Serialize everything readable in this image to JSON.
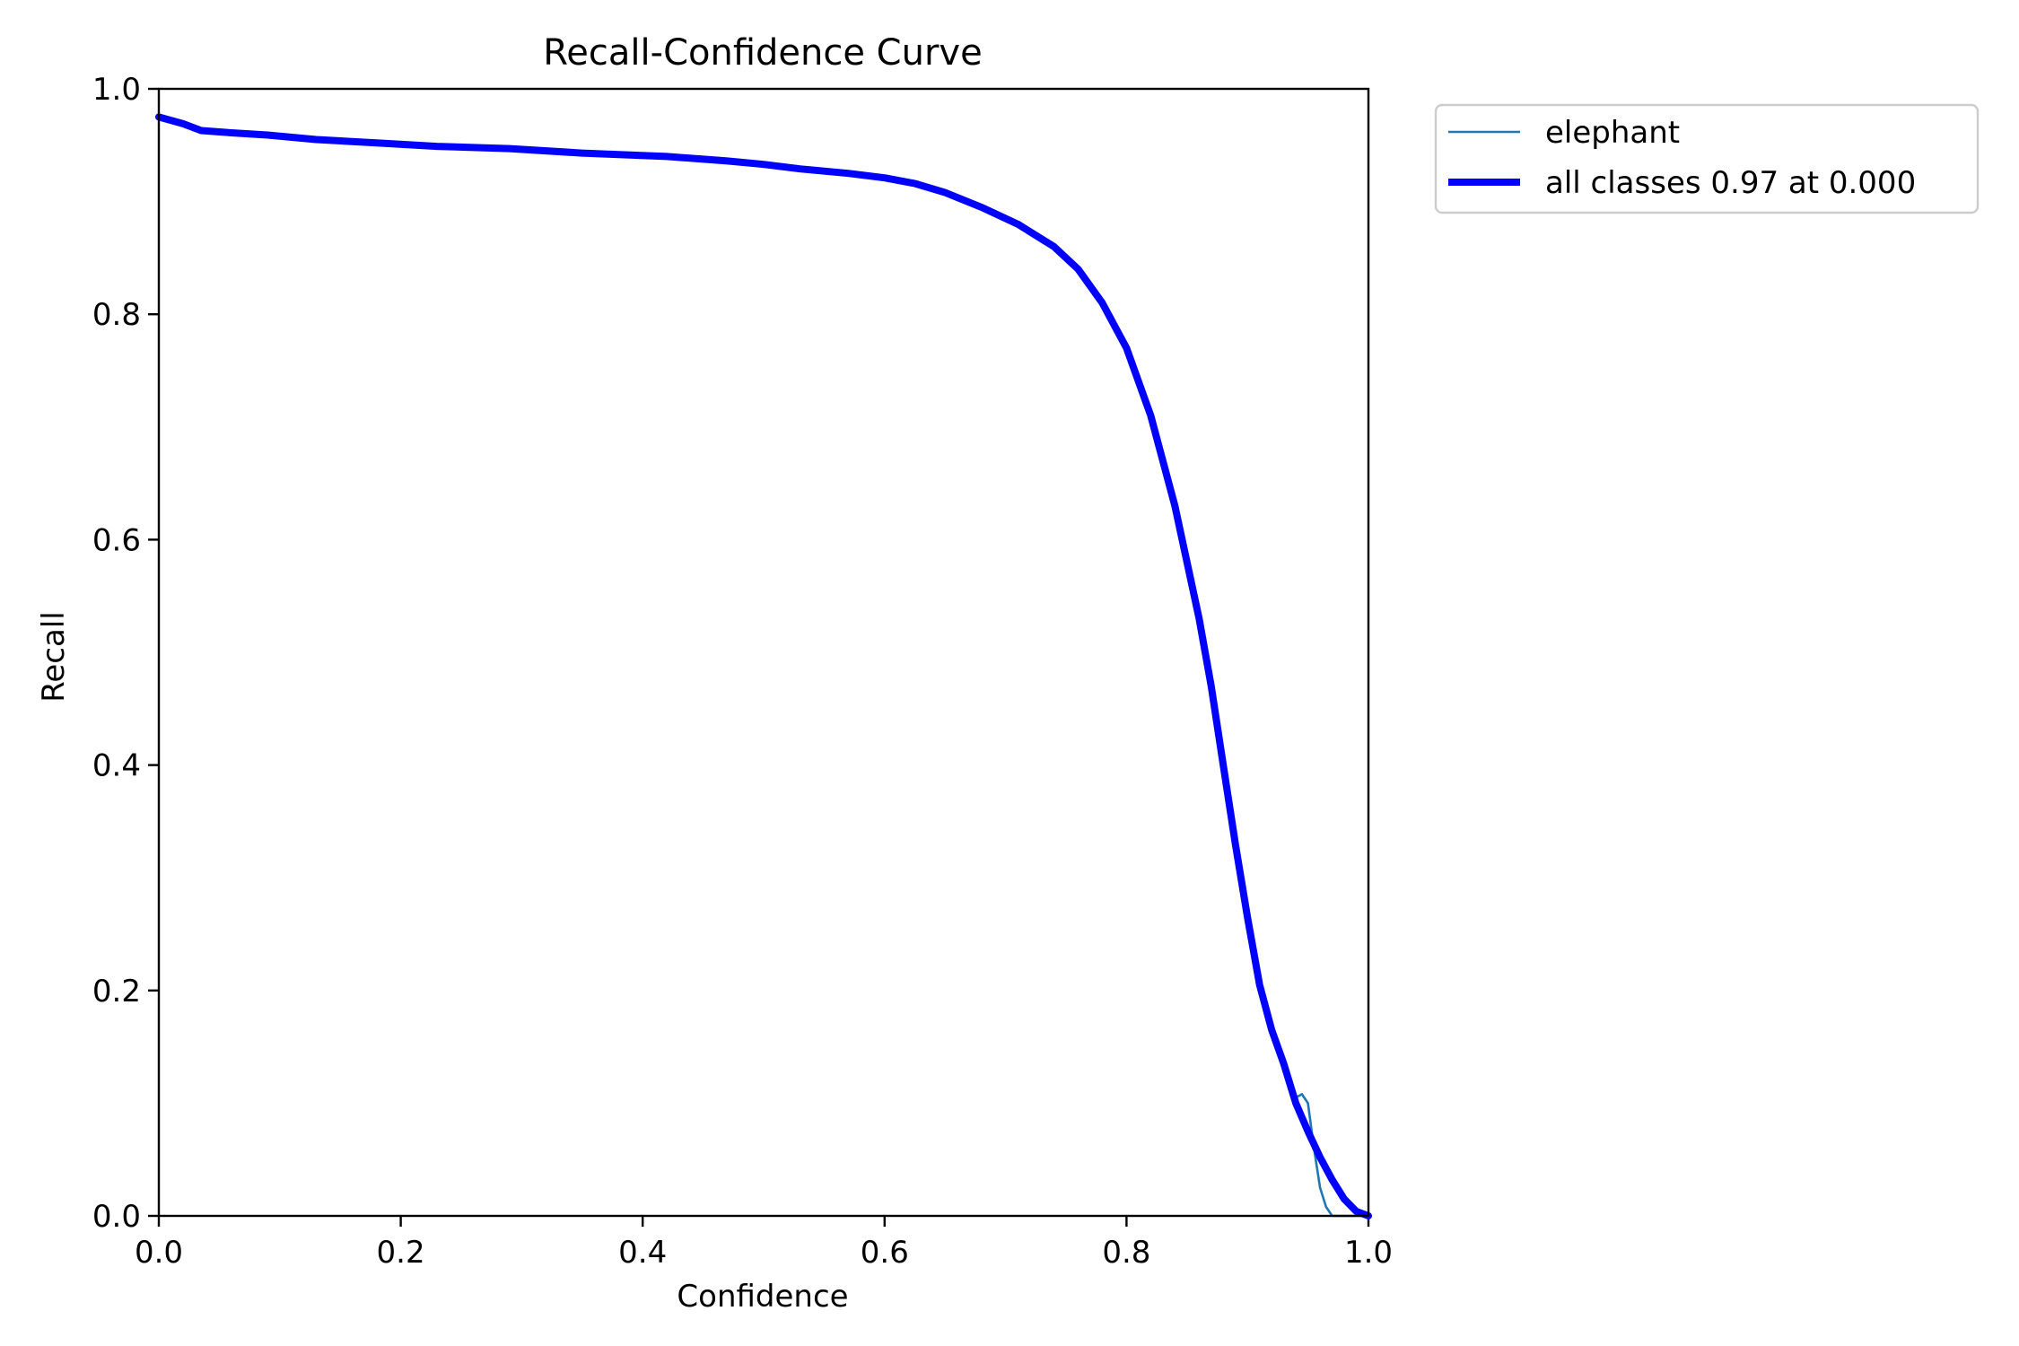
{
  "chart_data": {
    "type": "line",
    "title": "Recall-Confidence Curve",
    "xlabel": "Confidence",
    "ylabel": "Recall",
    "xlim": [
      0,
      1
    ],
    "ylim": [
      0,
      1
    ],
    "xticks": [
      "0.0",
      "0.2",
      "0.4",
      "0.6",
      "0.8",
      "1.0"
    ],
    "yticks": [
      "0.0",
      "0.2",
      "0.4",
      "0.6",
      "0.8",
      "1.0"
    ],
    "grid": false,
    "legend_position": "outside-top-right",
    "series": [
      {
        "name": "elephant",
        "color": "#1f77b4",
        "points": [
          [
            0.0,
            0.975
          ],
          [
            0.02,
            0.969
          ],
          [
            0.035,
            0.963
          ],
          [
            0.06,
            0.961
          ],
          [
            0.09,
            0.959
          ],
          [
            0.13,
            0.955
          ],
          [
            0.18,
            0.952
          ],
          [
            0.23,
            0.949
          ],
          [
            0.29,
            0.947
          ],
          [
            0.35,
            0.943
          ],
          [
            0.42,
            0.94
          ],
          [
            0.47,
            0.936
          ],
          [
            0.5,
            0.933
          ],
          [
            0.53,
            0.929
          ],
          [
            0.57,
            0.925
          ],
          [
            0.6,
            0.921
          ],
          [
            0.625,
            0.916
          ],
          [
            0.65,
            0.908
          ],
          [
            0.68,
            0.895
          ],
          [
            0.71,
            0.88
          ],
          [
            0.74,
            0.86
          ],
          [
            0.76,
            0.84
          ],
          [
            0.78,
            0.81
          ],
          [
            0.8,
            0.77
          ],
          [
            0.82,
            0.71
          ],
          [
            0.84,
            0.63
          ],
          [
            0.86,
            0.53
          ],
          [
            0.87,
            0.47
          ],
          [
            0.88,
            0.4
          ],
          [
            0.89,
            0.33
          ],
          [
            0.9,
            0.265
          ],
          [
            0.91,
            0.205
          ],
          [
            0.92,
            0.165
          ],
          [
            0.93,
            0.135
          ],
          [
            0.94,
            0.105
          ],
          [
            0.945,
            0.108
          ],
          [
            0.95,
            0.1
          ],
          [
            0.955,
            0.06
          ],
          [
            0.96,
            0.025
          ],
          [
            0.965,
            0.008
          ],
          [
            0.97,
            0.0
          ],
          [
            1.0,
            0.0
          ]
        ]
      },
      {
        "name": "all classes 0.97 at 0.000",
        "color": "#0000ff",
        "points": [
          [
            0.0,
            0.975
          ],
          [
            0.02,
            0.969
          ],
          [
            0.035,
            0.963
          ],
          [
            0.06,
            0.961
          ],
          [
            0.09,
            0.959
          ],
          [
            0.13,
            0.955
          ],
          [
            0.18,
            0.952
          ],
          [
            0.23,
            0.949
          ],
          [
            0.29,
            0.947
          ],
          [
            0.35,
            0.943
          ],
          [
            0.42,
            0.94
          ],
          [
            0.47,
            0.936
          ],
          [
            0.5,
            0.933
          ],
          [
            0.53,
            0.929
          ],
          [
            0.57,
            0.925
          ],
          [
            0.6,
            0.921
          ],
          [
            0.625,
            0.916
          ],
          [
            0.65,
            0.908
          ],
          [
            0.68,
            0.895
          ],
          [
            0.71,
            0.88
          ],
          [
            0.74,
            0.86
          ],
          [
            0.76,
            0.84
          ],
          [
            0.78,
            0.81
          ],
          [
            0.8,
            0.77
          ],
          [
            0.82,
            0.71
          ],
          [
            0.84,
            0.63
          ],
          [
            0.86,
            0.53
          ],
          [
            0.87,
            0.47
          ],
          [
            0.88,
            0.4
          ],
          [
            0.89,
            0.33
          ],
          [
            0.9,
            0.265
          ],
          [
            0.91,
            0.205
          ],
          [
            0.92,
            0.165
          ],
          [
            0.93,
            0.135
          ],
          [
            0.94,
            0.1
          ],
          [
            0.95,
            0.075
          ],
          [
            0.96,
            0.052
          ],
          [
            0.97,
            0.032
          ],
          [
            0.98,
            0.015
          ],
          [
            0.99,
            0.004
          ],
          [
            1.0,
            0.0
          ]
        ]
      }
    ]
  }
}
